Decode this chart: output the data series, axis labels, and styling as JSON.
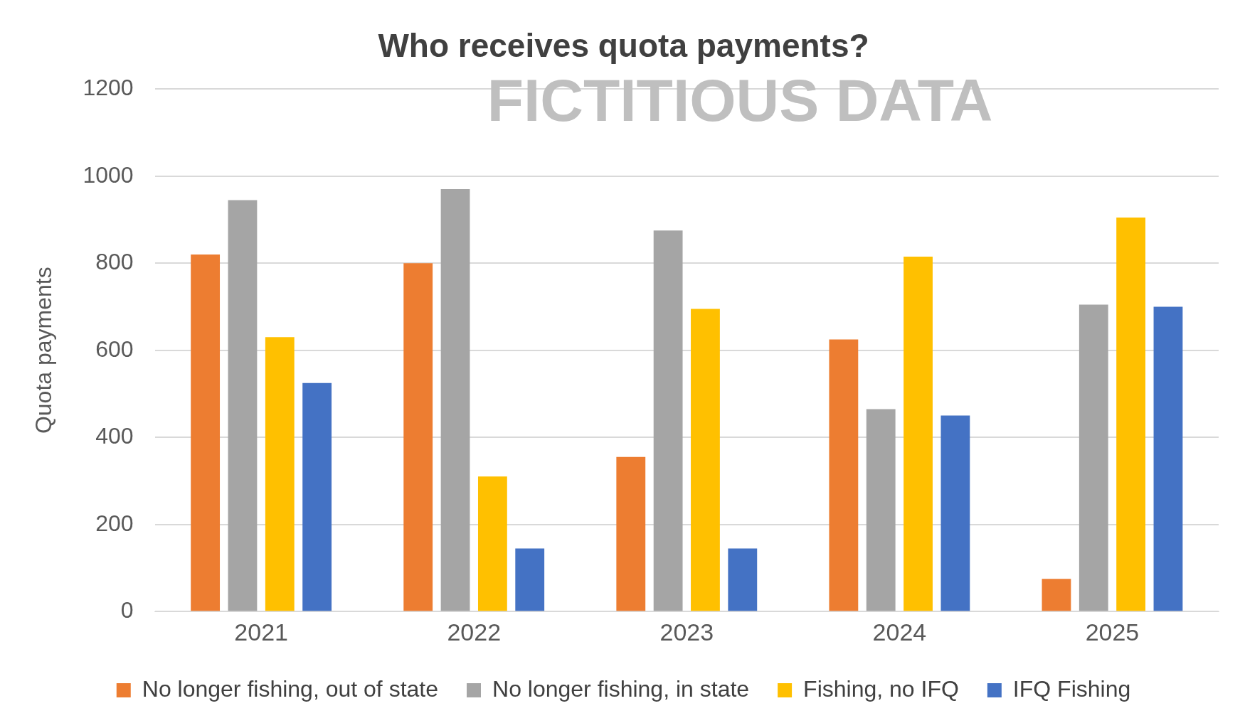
{
  "chart_data": {
    "type": "bar",
    "title": "Who receives quota payments?",
    "ylabel": "Quota payments",
    "categories": [
      "2021",
      "2022",
      "2023",
      "2024",
      "2025"
    ],
    "series": [
      {
        "name": "No longer fishing, out of state",
        "color": "#ed7d31",
        "values": [
          820,
          800,
          355,
          625,
          75
        ]
      },
      {
        "name": "No longer fishing, in state",
        "color": "#a5a5a5",
        "values": [
          945,
          970,
          875,
          465,
          705
        ]
      },
      {
        "name": "Fishing, no IFQ",
        "color": "#ffc000",
        "values": [
          630,
          310,
          695,
          815,
          905
        ]
      },
      {
        "name": "IFQ Fishing",
        "color": "#4472c4",
        "values": [
          525,
          145,
          145,
          450,
          700
        ]
      }
    ],
    "ylim": [
      0,
      1200
    ],
    "yticks": [
      0,
      200,
      400,
      600,
      800,
      1000,
      1200
    ],
    "grid": "y",
    "legend": "bottom",
    "annotations": [
      "FICTITIOUS DATA"
    ]
  }
}
